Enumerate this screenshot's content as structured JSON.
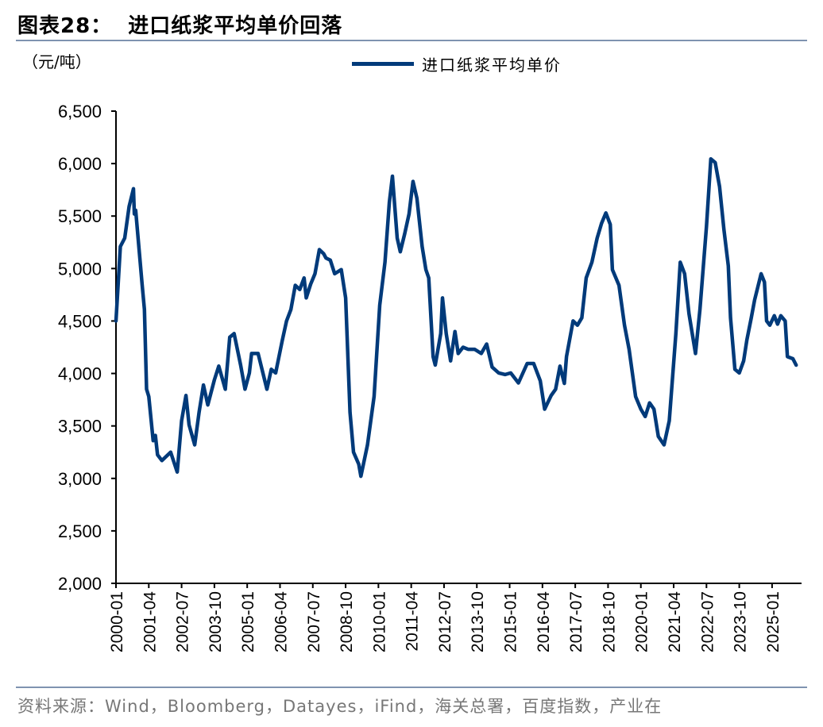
{
  "header": {
    "title": "图表28：  进口纸浆平均单价回落"
  },
  "source": "资料来源：Wind，Bloomberg，Datayes，iFind，海关总署，百度指数，产业在",
  "colors": {
    "line": "#003a7a",
    "rule": "#7f93b0"
  },
  "chart_data": {
    "type": "line",
    "title": "进口纸浆平均单价回落",
    "ylabel": "（元/吨）",
    "xlabel": "",
    "ylim": [
      2000,
      6500
    ],
    "yticks": [
      2000,
      2500,
      3000,
      3500,
      4000,
      4500,
      5000,
      5500,
      6000,
      6500
    ],
    "ytick_labels": [
      "2,000",
      "2,500",
      "3,000",
      "3,500",
      "4,000",
      "4,500",
      "5,000",
      "5,500",
      "6,000",
      "6,500"
    ],
    "xtick_labels": [
      "2000-01",
      "2001-04",
      "2002-07",
      "2003-10",
      "2005-01",
      "2006-04",
      "2007-07",
      "2008-10",
      "2010-01",
      "2011-04",
      "2012-07",
      "2013-10",
      "2015-01",
      "2016-04",
      "2017-07",
      "2018-10",
      "2020-01",
      "2021-04",
      "2022-07",
      "2023-10",
      "2025-01"
    ],
    "x_unit": "months since 2000-01",
    "xlim": [
      0,
      312
    ],
    "legend": {
      "position": "top-center",
      "entries": [
        "进口纸浆平均单价"
      ]
    },
    "grid": false,
    "series": [
      {
        "name": "进口纸浆平均单价",
        "points": [
          [
            0,
            4500
          ],
          [
            2,
            5210
          ],
          [
            4,
            5290
          ],
          [
            6,
            5590
          ],
          [
            8,
            5760
          ],
          [
            8.4,
            5520
          ],
          [
            9,
            5555
          ],
          [
            12,
            4840
          ],
          [
            13,
            4610
          ],
          [
            14,
            3850
          ],
          [
            15,
            3780
          ],
          [
            17,
            3360
          ],
          [
            18,
            3410
          ],
          [
            19,
            3225
          ],
          [
            21,
            3170
          ],
          [
            23,
            3210
          ],
          [
            25,
            3250
          ],
          [
            28,
            3060
          ],
          [
            30,
            3550
          ],
          [
            32,
            3790
          ],
          [
            33.4,
            3510
          ],
          [
            36,
            3320
          ],
          [
            38,
            3630
          ],
          [
            40,
            3890
          ],
          [
            42,
            3700
          ],
          [
            45,
            3940
          ],
          [
            47,
            4070
          ],
          [
            50,
            3850
          ],
          [
            52,
            4345
          ],
          [
            54,
            4380
          ],
          [
            57,
            4080
          ],
          [
            59,
            3850
          ],
          [
            61,
            4005
          ],
          [
            62,
            4190
          ],
          [
            65,
            4190
          ],
          [
            69,
            3850
          ],
          [
            71,
            4040
          ],
          [
            73,
            4005
          ],
          [
            76,
            4310
          ],
          [
            78,
            4500
          ],
          [
            80,
            4610
          ],
          [
            82,
            4840
          ],
          [
            84,
            4800
          ],
          [
            86,
            4910
          ],
          [
            87,
            4720
          ],
          [
            89,
            4850
          ],
          [
            91,
            4950
          ],
          [
            93,
            5180
          ],
          [
            95,
            5140
          ],
          [
            96,
            5100
          ],
          [
            98,
            5080
          ],
          [
            100,
            4950
          ],
          [
            103,
            4990
          ],
          [
            105,
            4720
          ],
          [
            107,
            3630
          ],
          [
            108.6,
            3250
          ],
          [
            111,
            3135
          ],
          [
            112,
            3020
          ],
          [
            115,
            3320
          ],
          [
            118,
            3780
          ],
          [
            120.6,
            4650
          ],
          [
            123,
            5060
          ],
          [
            125,
            5630
          ],
          [
            126.4,
            5880
          ],
          [
            128.6,
            5290
          ],
          [
            130,
            5160
          ],
          [
            132,
            5330
          ],
          [
            134,
            5520
          ],
          [
            135.8,
            5830
          ],
          [
            137.6,
            5670
          ],
          [
            140,
            5210
          ],
          [
            141.7,
            4990
          ],
          [
            143,
            4910
          ],
          [
            145,
            4160
          ],
          [
            146,
            4080
          ],
          [
            148.5,
            4380
          ],
          [
            149.3,
            4720
          ],
          [
            151,
            4380
          ],
          [
            153,
            4120
          ],
          [
            155,
            4400
          ],
          [
            156.5,
            4190
          ],
          [
            158.7,
            4250
          ],
          [
            161,
            4230
          ],
          [
            164,
            4230
          ],
          [
            167,
            4190
          ],
          [
            169.5,
            4280
          ],
          [
            172,
            4060
          ],
          [
            175,
            4005
          ],
          [
            178,
            3990
          ],
          [
            180.5,
            4005
          ],
          [
            184,
            3910
          ],
          [
            188,
            4095
          ],
          [
            191,
            4095
          ],
          [
            194,
            3930
          ],
          [
            196,
            3660
          ],
          [
            199,
            3790
          ],
          [
            201,
            3850
          ],
          [
            203,
            4070
          ],
          [
            205,
            3905
          ],
          [
            206,
            4160
          ],
          [
            209,
            4500
          ],
          [
            211,
            4460
          ],
          [
            213,
            4530
          ],
          [
            215,
            4910
          ],
          [
            217.6,
            5060
          ],
          [
            220,
            5290
          ],
          [
            222,
            5430
          ],
          [
            224,
            5530
          ],
          [
            226,
            5420
          ],
          [
            227,
            4990
          ],
          [
            230,
            4840
          ],
          [
            232.5,
            4460
          ],
          [
            234.6,
            4230
          ],
          [
            237.6,
            3780
          ],
          [
            240,
            3660
          ],
          [
            242,
            3590
          ],
          [
            244,
            3720
          ],
          [
            246,
            3660
          ],
          [
            248,
            3400
          ],
          [
            250.6,
            3320
          ],
          [
            253,
            3550
          ],
          [
            256,
            4380
          ],
          [
            258,
            5060
          ],
          [
            260,
            4950
          ],
          [
            262,
            4570
          ],
          [
            265,
            4190
          ],
          [
            267,
            4610
          ],
          [
            270,
            5400
          ],
          [
            272,
            6045
          ],
          [
            274,
            6010
          ],
          [
            276,
            5780
          ],
          [
            278,
            5370
          ],
          [
            280,
            5025
          ],
          [
            281,
            4530
          ],
          [
            283,
            4040
          ],
          [
            285,
            4005
          ],
          [
            287,
            4120
          ],
          [
            288.5,
            4320
          ],
          [
            290.5,
            4530
          ],
          [
            292,
            4700
          ],
          [
            295,
            4950
          ],
          [
            296.5,
            4870
          ],
          [
            297.5,
            4500
          ],
          [
            299,
            4460
          ],
          [
            301,
            4550
          ],
          [
            302.5,
            4470
          ],
          [
            304,
            4550
          ],
          [
            306,
            4500
          ],
          [
            307,
            4160
          ],
          [
            309.5,
            4140
          ],
          [
            311,
            4080
          ]
        ]
      }
    ]
  }
}
